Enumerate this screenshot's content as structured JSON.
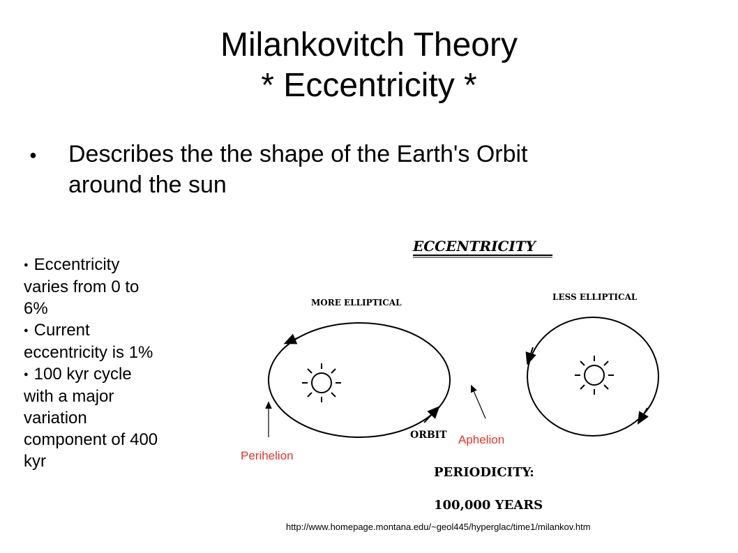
{
  "title": {
    "line1": "Milankovitch Theory",
    "line2": "* Eccentricity *"
  },
  "main_bullet": {
    "line1": "Describes the the shape of the Earth's Orbit",
    "line2": "around the sun"
  },
  "side_bullets": [
    {
      "lines": [
        "Eccentricity",
        "varies from 0 to",
        "6%"
      ]
    },
    {
      "lines": [
        "Current",
        "eccentricity is 1%"
      ]
    },
    {
      "lines": [
        "100 kyr cycle",
        "with a major",
        "variation",
        "component of 400",
        "kyr"
      ]
    }
  ],
  "diagram": {
    "heading": "ECCENTRICITY",
    "more_elliptical": "MORE ELLIPTICAL",
    "less_elliptical": "LESS ELLIPTICAL",
    "orbit": "ORBIT",
    "periodicity": "PERIODICITY:",
    "years": "100,000 YEARS",
    "perihelion": "Perihelion",
    "aphelion": "Aphelion",
    "annotation_color": "#e8302a"
  },
  "source_url": "http://www.homepage.montana.edu/~geol445/hyperglac/time1/milankov.htm"
}
